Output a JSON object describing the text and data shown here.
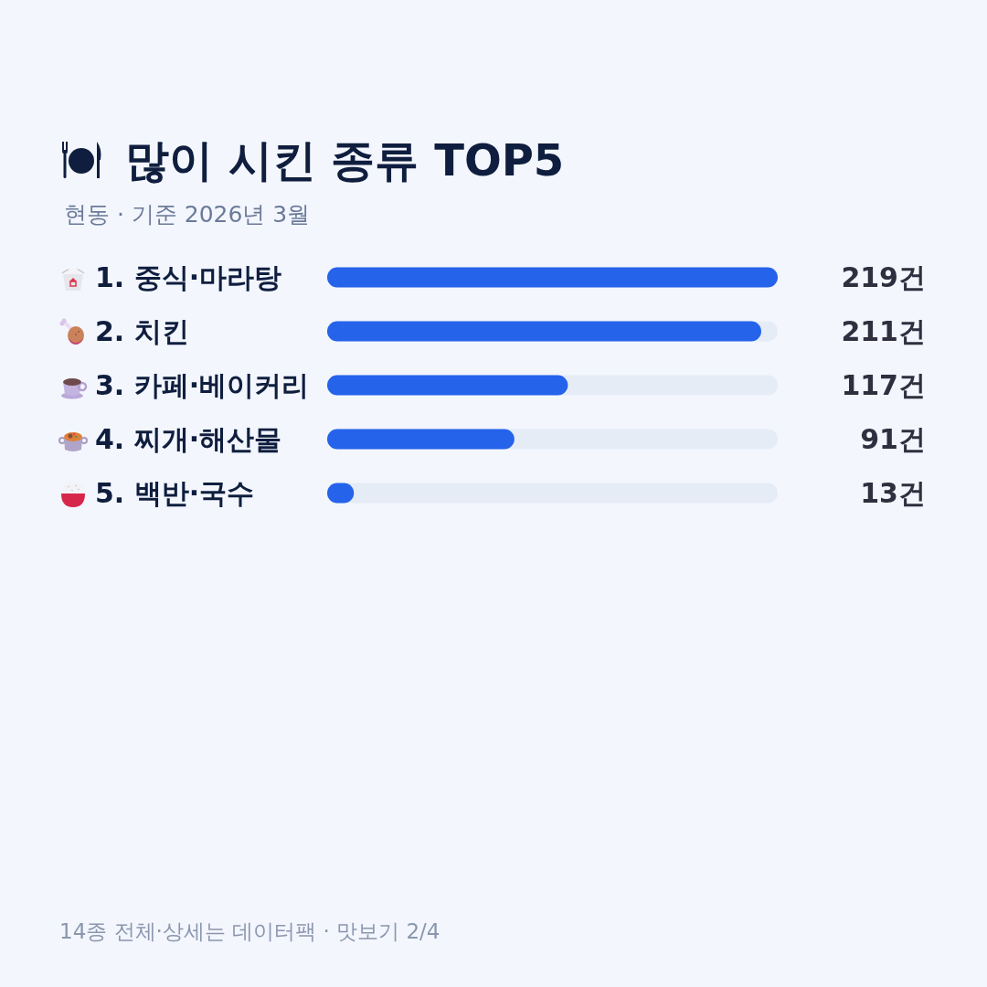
{
  "chart_data": {
    "type": "bar",
    "orientation": "horizontal",
    "title": "많이 시킨 종류 TOP5",
    "subtitle": "현동 · 기준 2026년 3월",
    "categories": [
      "1. 중식·마라탕",
      "2. 치킨",
      "3. 카페·베이커리",
      "4. 찌개·해산물",
      "5. 백반·국수"
    ],
    "values": [
      219,
      211,
      117,
      91,
      13
    ],
    "color": "#2563eb",
    "value_labels": [
      "219건",
      "211건",
      "117건",
      "91건",
      "13건"
    ],
    "xlim": [
      0,
      219
    ],
    "tick_labels": "y",
    "annotations": [
      "14종 전체·상세는 데이터팩 · 맛보기 2/4"
    ]
  }
}
